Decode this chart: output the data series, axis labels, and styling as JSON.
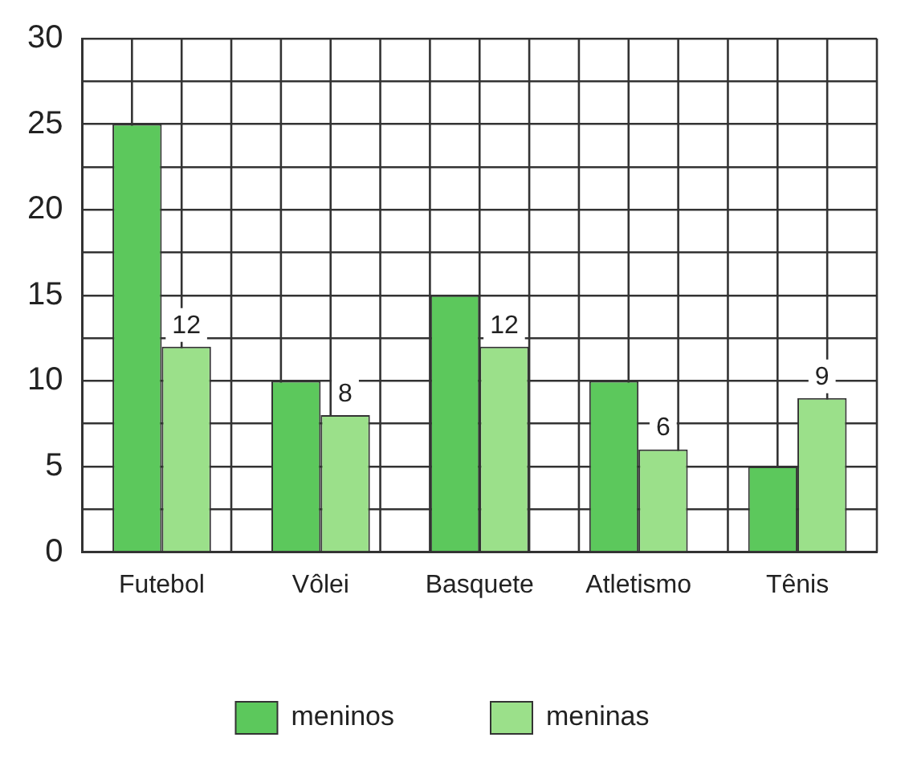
{
  "chart_data": {
    "type": "bar",
    "categories": [
      "Futebol",
      "Vôlei",
      "Basquete",
      "Atletismo",
      "Tênis"
    ],
    "series": [
      {
        "name": "meninos",
        "color": "#5cc85c",
        "values": [
          25,
          10,
          15,
          10,
          5
        ]
      },
      {
        "name": "meninas",
        "color": "#9be08a",
        "values": [
          12,
          8,
          12,
          6,
          9
        ],
        "value_labels": [
          "12",
          "8",
          "12",
          "6",
          "9"
        ]
      }
    ],
    "ylim": [
      0,
      30
    ],
    "yticks": [
      0,
      {
        "value": 2.5,
        "label": null
      },
      5,
      {
        "value": 7.5,
        "label": null
      },
      10,
      {
        "value": 12.5,
        "label": null
      },
      15,
      {
        "value": 17.5,
        "label": null
      },
      20,
      {
        "value": 22.5,
        "label": null
      },
      25,
      {
        "value": 27.5,
        "label": null
      },
      30
    ],
    "grid": true,
    "legend": "bottom"
  }
}
